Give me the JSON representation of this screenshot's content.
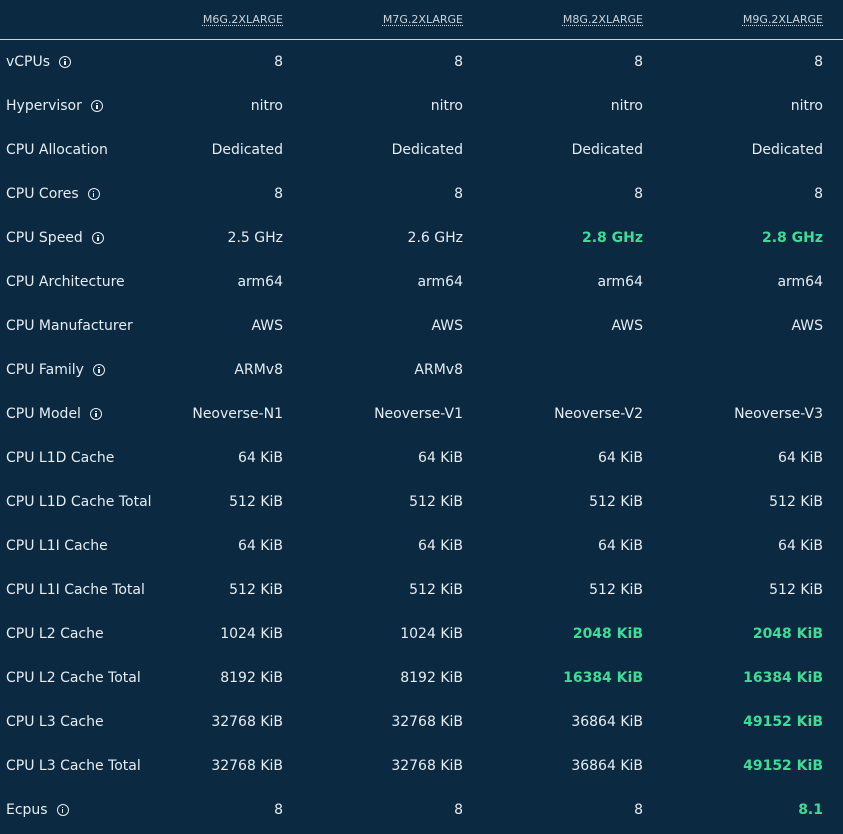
{
  "columns": [
    "M6G.2XLARGE",
    "M7G.2XLARGE",
    "M8G.2XLARGE",
    "M9G.2XLARGE"
  ],
  "highlight_color": "#3ddc97",
  "rows": [
    {
      "label": "vCPUs",
      "info": true,
      "values": [
        "8",
        "8",
        "8",
        "8"
      ],
      "highlight": [
        false,
        false,
        false,
        false
      ]
    },
    {
      "label": "Hypervisor",
      "info": true,
      "values": [
        "nitro",
        "nitro",
        "nitro",
        "nitro"
      ],
      "highlight": [
        false,
        false,
        false,
        false
      ]
    },
    {
      "label": "CPU Allocation",
      "info": false,
      "values": [
        "Dedicated",
        "Dedicated",
        "Dedicated",
        "Dedicated"
      ],
      "highlight": [
        false,
        false,
        false,
        false
      ]
    },
    {
      "label": "CPU Cores",
      "info": true,
      "values": [
        "8",
        "8",
        "8",
        "8"
      ],
      "highlight": [
        false,
        false,
        false,
        false
      ]
    },
    {
      "label": "CPU Speed",
      "info": true,
      "values": [
        "2.5 GHz",
        "2.6 GHz",
        "2.8 GHz",
        "2.8 GHz"
      ],
      "highlight": [
        false,
        false,
        true,
        true
      ]
    },
    {
      "label": "CPU Architecture",
      "info": false,
      "values": [
        "arm64",
        "arm64",
        "arm64",
        "arm64"
      ],
      "highlight": [
        false,
        false,
        false,
        false
      ]
    },
    {
      "label": "CPU Manufacturer",
      "info": false,
      "values": [
        "AWS",
        "AWS",
        "AWS",
        "AWS"
      ],
      "highlight": [
        false,
        false,
        false,
        false
      ]
    },
    {
      "label": "CPU Family",
      "info": true,
      "values": [
        "ARMv8",
        "ARMv8",
        "",
        ""
      ],
      "highlight": [
        false,
        false,
        false,
        false
      ]
    },
    {
      "label": "CPU Model",
      "info": true,
      "values": [
        "Neoverse-N1",
        "Neoverse-V1",
        "Neoverse-V2",
        "Neoverse-V3"
      ],
      "highlight": [
        false,
        false,
        false,
        false
      ]
    },
    {
      "label": "CPU L1D Cache",
      "info": false,
      "values": [
        "64 KiB",
        "64 KiB",
        "64 KiB",
        "64 KiB"
      ],
      "highlight": [
        false,
        false,
        false,
        false
      ]
    },
    {
      "label": "CPU L1D Cache Total",
      "info": false,
      "values": [
        "512 KiB",
        "512 KiB",
        "512 KiB",
        "512 KiB"
      ],
      "highlight": [
        false,
        false,
        false,
        false
      ]
    },
    {
      "label": "CPU L1I Cache",
      "info": false,
      "values": [
        "64 KiB",
        "64 KiB",
        "64 KiB",
        "64 KiB"
      ],
      "highlight": [
        false,
        false,
        false,
        false
      ]
    },
    {
      "label": "CPU L1I Cache Total",
      "info": false,
      "values": [
        "512 KiB",
        "512 KiB",
        "512 KiB",
        "512 KiB"
      ],
      "highlight": [
        false,
        false,
        false,
        false
      ]
    },
    {
      "label": "CPU L2 Cache",
      "info": false,
      "values": [
        "1024 KiB",
        "1024 KiB",
        "2048 KiB",
        "2048 KiB"
      ],
      "highlight": [
        false,
        false,
        true,
        true
      ]
    },
    {
      "label": "CPU L2 Cache Total",
      "info": false,
      "values": [
        "8192 KiB",
        "8192 KiB",
        "16384 KiB",
        "16384 KiB"
      ],
      "highlight": [
        false,
        false,
        true,
        true
      ]
    },
    {
      "label": "CPU L3 Cache",
      "info": false,
      "values": [
        "32768 KiB",
        "32768 KiB",
        "36864 KiB",
        "49152 KiB"
      ],
      "highlight": [
        false,
        false,
        false,
        true
      ]
    },
    {
      "label": "CPU L3 Cache Total",
      "info": false,
      "values": [
        "32768 KiB",
        "32768 KiB",
        "36864 KiB",
        "49152 KiB"
      ],
      "highlight": [
        false,
        false,
        false,
        true
      ]
    },
    {
      "label": "Ecpus",
      "info": true,
      "values": [
        "8",
        "8",
        "8",
        "8.1"
      ],
      "highlight": [
        false,
        false,
        false,
        true
      ]
    }
  ]
}
